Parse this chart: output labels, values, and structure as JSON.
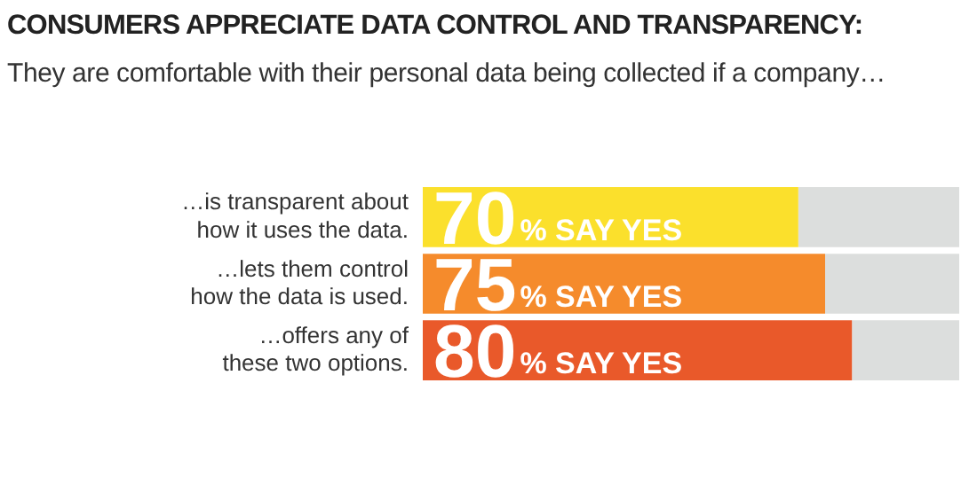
{
  "chart_data": {
    "type": "bar",
    "orientation": "horizontal",
    "stacked": true,
    "title": "CONSUMERS APPRECIATE DATA CONTROL AND TRANSPARENCY:",
    "subtitle": "They are comfortable with their personal data being collected if a company…",
    "categories": [
      "…is transparent about how it uses the data.",
      "…lets them control how the data is used.",
      "…offers any of these two options."
    ],
    "series": [
      {
        "colors": [
          "#fbe02c",
          "#f58b2c",
          "#e9592a"
        ],
        "values": [
          70,
          75,
          80
        ],
        "value_labels": [
          "70% SAY YES",
          "75% SAY YES",
          "80% SAY YES"
        ]
      },
      {
        "color": "#dcdedd",
        "values": [
          30,
          25,
          20
        ]
      }
    ],
    "xlim": [
      0,
      100
    ],
    "tick_labels": "y"
  }
}
